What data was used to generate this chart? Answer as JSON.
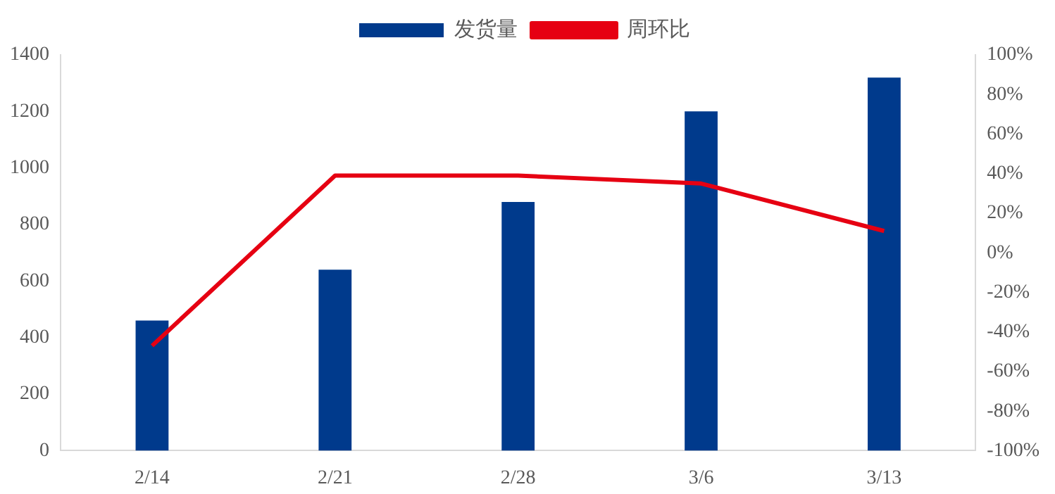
{
  "chart_data": {
    "type": "bar",
    "categories": [
      "2/14",
      "2/21",
      "2/28",
      "3/6",
      "3/13"
    ],
    "series": [
      {
        "name": "发货量",
        "color": "#003a8c",
        "values": [
          460,
          640,
          880,
          1200,
          1320
        ]
      },
      {
        "name": "周环比",
        "type": "line",
        "axis": "y2",
        "color": "#e60012",
        "values": [
          -47,
          39,
          39,
          35,
          11
        ]
      }
    ],
    "ylim": [
      0,
      1400
    ],
    "yticks": [
      0,
      200,
      400,
      600,
      800,
      1000,
      1200,
      1400
    ],
    "y2lim": [
      -100,
      100
    ],
    "y2ticks": [
      {
        "value": -100,
        "label": "-100%"
      },
      {
        "value": -80,
        "label": "-80%"
      },
      {
        "value": -60,
        "label": "-60%"
      },
      {
        "value": -40,
        "label": "-40%"
      },
      {
        "value": -20,
        "label": "-20%"
      },
      {
        "value": 0,
        "label": "0%"
      },
      {
        "value": 20,
        "label": "20%"
      },
      {
        "value": 40,
        "label": "40%"
      },
      {
        "value": 60,
        "label": "60%"
      },
      {
        "value": 80,
        "label": "80%"
      },
      {
        "value": 100,
        "label": "100%"
      }
    ],
    "grid": false,
    "legend": "top",
    "marker": "none",
    "line_style": "solid"
  }
}
